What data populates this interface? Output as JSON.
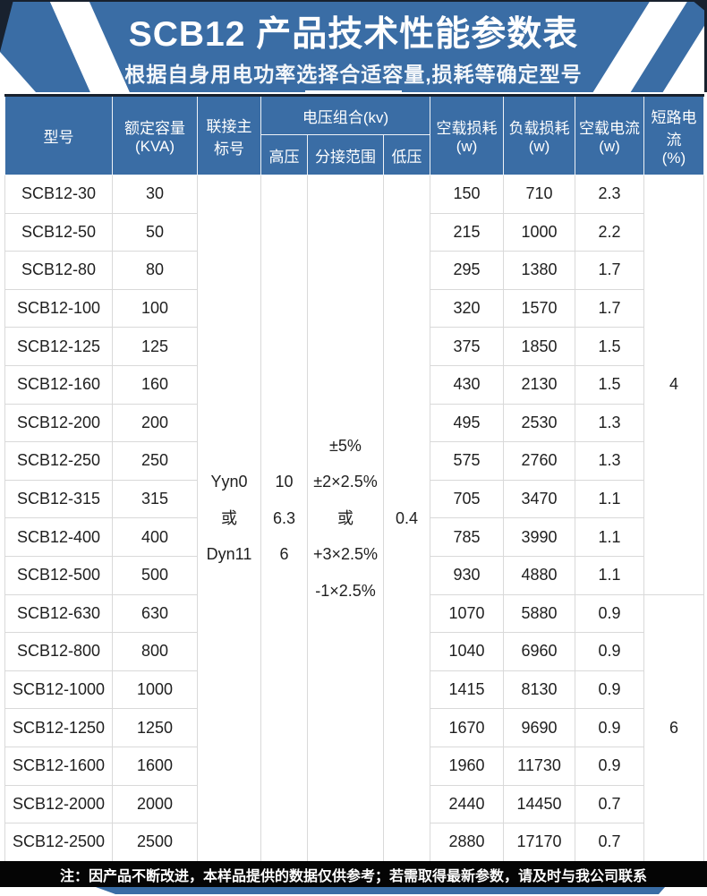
{
  "banner": {
    "title": "SCB12 产品技术性能参数表",
    "subtitle": "根据自身用电功率选择合适容量,损耗等确定型号"
  },
  "table": {
    "headers": {
      "model": "型号",
      "capacity": "额定容量\n(KVA)",
      "vector_group": "联接主\n标号",
      "voltage_group": "电压组合(kv)",
      "hv": "高压",
      "tap_range": "分接范围",
      "lv": "低压",
      "no_load_loss": "空载损耗\n(w)",
      "load_loss": "负载损耗\n(w)",
      "no_load_current": "空载电流\n(w)",
      "short_circuit_current": "短路电流\n(%)"
    },
    "merged": {
      "vector_group": "Yyn0\n或\nDyn11",
      "hv": "10\n6.3\n6",
      "tap_range": "±5%\n±2×2.5%\n或\n+3×2.5%\n-1×2.5%",
      "lv": "0.4",
      "short_circuit_a": "4",
      "short_circuit_b": "6"
    },
    "rows": [
      {
        "model": "SCB12-30",
        "kva": "30",
        "no_load_loss": "150",
        "load_loss": "710",
        "no_load_current": "2.3"
      },
      {
        "model": "SCB12-50",
        "kva": "50",
        "no_load_loss": "215",
        "load_loss": "1000",
        "no_load_current": "2.2"
      },
      {
        "model": "SCB12-80",
        "kva": "80",
        "no_load_loss": "295",
        "load_loss": "1380",
        "no_load_current": "1.7"
      },
      {
        "model": "SCB12-100",
        "kva": "100",
        "no_load_loss": "320",
        "load_loss": "1570",
        "no_load_current": "1.7"
      },
      {
        "model": "SCB12-125",
        "kva": "125",
        "no_load_loss": "375",
        "load_loss": "1850",
        "no_load_current": "1.5"
      },
      {
        "model": "SCB12-160",
        "kva": "160",
        "no_load_loss": "430",
        "load_loss": "2130",
        "no_load_current": "1.5"
      },
      {
        "model": "SCB12-200",
        "kva": "200",
        "no_load_loss": "495",
        "load_loss": "2530",
        "no_load_current": "1.3"
      },
      {
        "model": "SCB12-250",
        "kva": "250",
        "no_load_loss": "575",
        "load_loss": "2760",
        "no_load_current": "1.3"
      },
      {
        "model": "SCB12-315",
        "kva": "315",
        "no_load_loss": "705",
        "load_loss": "3470",
        "no_load_current": "1.1"
      },
      {
        "model": "SCB12-400",
        "kva": "400",
        "no_load_loss": "785",
        "load_loss": "3990",
        "no_load_current": "1.1"
      },
      {
        "model": "SCB12-500",
        "kva": "500",
        "no_load_loss": "930",
        "load_loss": "4880",
        "no_load_current": "1.1"
      },
      {
        "model": "SCB12-630",
        "kva": "630",
        "no_load_loss": "1070",
        "load_loss": "5880",
        "no_load_current": "0.9"
      },
      {
        "model": "SCB12-800",
        "kva": "800",
        "no_load_loss": "1040",
        "load_loss": "6960",
        "no_load_current": "0.9"
      },
      {
        "model": "SCB12-1000",
        "kva": "1000",
        "no_load_loss": "1415",
        "load_loss": "8130",
        "no_load_current": "0.9"
      },
      {
        "model": "SCB12-1250",
        "kva": "1250",
        "no_load_loss": "1670",
        "load_loss": "9690",
        "no_load_current": "0.9"
      },
      {
        "model": "SCB12-1600",
        "kva": "1600",
        "no_load_loss": "1960",
        "load_loss": "11730",
        "no_load_current": "0.9"
      },
      {
        "model": "SCB12-2000",
        "kva": "2000",
        "no_load_loss": "2440",
        "load_loss": "14450",
        "no_load_current": "0.7"
      },
      {
        "model": "SCB12-2500",
        "kva": "2500",
        "no_load_loss": "2880",
        "load_loss": "17170",
        "no_load_current": "0.7"
      }
    ],
    "short_circuit_a_row_span": 11,
    "short_circuit_b_row_span": 7
  },
  "footer": {
    "note": "注：因产品不断改进，本样品提供的数据仅供参考；若需取得最新参数，请及时与我公司联系"
  },
  "colors": {
    "blue": "#3a6da5",
    "navy": "#18212e",
    "grid": "#d9d9d9",
    "note_bar": "#050505",
    "text": "#1f1f1f"
  }
}
